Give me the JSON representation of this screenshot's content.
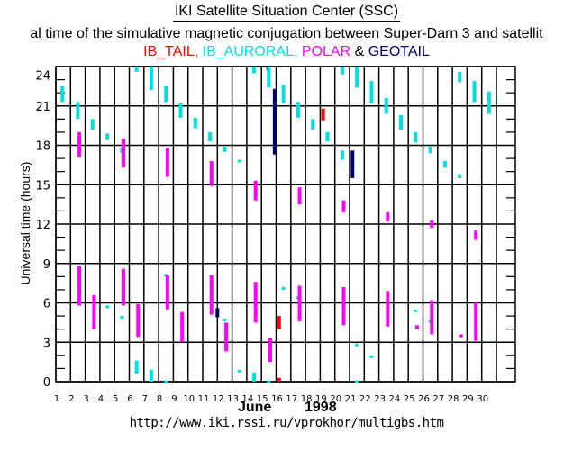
{
  "header": {
    "title": "IKI Satellite Situation Center (SSC)",
    "subtitle": "al time of the simulative magnetic conjugation between Super-Darn 3 and satellit",
    "legend": [
      {
        "label": "IB_TAIL,",
        "color": "#ff0000"
      },
      {
        "label": " IB_AURORAL,",
        "color": "#00e0e0"
      },
      {
        "label": " POLAR",
        "color": "#ff00ff"
      },
      {
        "label": " & ",
        "color": "#000000"
      },
      {
        "label": "GEOTAIL",
        "color": "#000070"
      }
    ]
  },
  "footer": {
    "month": "June",
    "year": "1998",
    "url": "http://www.iki.rssi.ru/vprokhor/multigbs.htm"
  },
  "chart_data": {
    "type": "bar",
    "title": "IKI Satellite Situation Center (SSC)",
    "xlabel": "June 1998",
    "ylabel": "Universal time (hours)",
    "xlim": [
      1,
      31
    ],
    "ylim": [
      0,
      24
    ],
    "grid": true,
    "x_ticks": [
      "1",
      "2",
      "3",
      "4",
      "5",
      "6",
      "7",
      "8",
      "9",
      "10",
      "11",
      "12",
      "13",
      "14",
      "15",
      "16",
      "17",
      "18",
      "19",
      "20",
      "21",
      "22",
      "23",
      "24",
      "25",
      "26",
      "27",
      "28",
      "29",
      "30"
    ],
    "y_ticks": [
      "0",
      "3",
      "6",
      "9",
      "12",
      "15",
      "18",
      "21",
      "24"
    ],
    "legend_position": "top-center",
    "series": [
      {
        "name": "IB_TAIL",
        "color": "#ff0000",
        "intervals": [
          [
            15.45,
            23.7,
            24.0
          ],
          [
            16.2,
            4.0,
            5.0
          ],
          [
            16.2,
            0.0,
            0.3
          ],
          [
            19.2,
            19.9,
            20.8
          ]
        ]
      },
      {
        "name": "IB_AURORAL",
        "color": "#00e0e0",
        "intervals": [
          [
            1.45,
            21.3,
            22.5
          ],
          [
            2.5,
            20.0,
            21.3
          ],
          [
            3.5,
            19.2,
            20.0
          ],
          [
            4.5,
            18.4,
            18.9
          ],
          [
            5.5,
            17.4,
            17.8
          ],
          [
            6.5,
            23.6,
            24.0
          ],
          [
            7.5,
            22.2,
            24.0
          ],
          [
            8.5,
            21.3,
            22.5
          ],
          [
            9.5,
            20.1,
            21.2
          ],
          [
            10.5,
            19.3,
            20.1
          ],
          [
            11.5,
            18.3,
            19.0
          ],
          [
            12.5,
            17.5,
            17.9
          ],
          [
            13.5,
            16.7,
            16.9
          ],
          [
            14.5,
            23.5,
            24.0
          ],
          [
            15.5,
            22.4,
            24.0
          ],
          [
            16.5,
            21.2,
            22.6
          ],
          [
            17.5,
            20.1,
            21.3
          ],
          [
            18.5,
            19.2,
            20.0
          ],
          [
            19.5,
            18.3,
            19.0
          ],
          [
            20.5,
            16.9,
            17.6
          ],
          [
            20.5,
            23.4,
            24.0
          ],
          [
            21.5,
            22.4,
            24.0
          ],
          [
            22.5,
            21.2,
            22.9
          ],
          [
            23.5,
            20.4,
            21.6
          ],
          [
            24.5,
            19.2,
            20.3
          ],
          [
            25.5,
            18.2,
            19.0
          ],
          [
            26.5,
            17.4,
            17.9
          ],
          [
            27.5,
            16.3,
            16.8
          ],
          [
            28.5,
            15.5,
            15.8
          ],
          [
            28.5,
            22.8,
            23.6
          ],
          [
            29.5,
            21.3,
            22.9
          ],
          [
            30.5,
            20.4,
            22.1
          ],
          [
            4.5,
            5.6,
            5.8
          ],
          [
            5.5,
            4.8,
            5.0
          ],
          [
            6.5,
            0.6,
            1.6
          ],
          [
            7.5,
            0.0,
            0.9
          ],
          [
            8.5,
            0.0,
            0.1
          ],
          [
            8.5,
            8.0,
            8.2
          ],
          [
            12.5,
            4.6,
            4.8
          ],
          [
            13.5,
            0.8,
            0.9
          ],
          [
            14.5,
            0.0,
            0.7
          ],
          [
            15.5,
            0.0,
            0.1
          ],
          [
            16.5,
            7.0,
            7.2
          ],
          [
            17.5,
            6.3,
            6.5
          ],
          [
            21.5,
            2.7,
            2.9
          ],
          [
            22.5,
            1.8,
            2.0
          ],
          [
            21.5,
            0.0,
            0.1
          ],
          [
            25.5,
            5.3,
            5.5
          ],
          [
            26.5,
            4.5,
            4.7
          ]
        ]
      },
      {
        "name": "POLAR",
        "color": "#ff00ff",
        "intervals": [
          [
            2.6,
            17.1,
            19.0
          ],
          [
            5.6,
            16.3,
            18.5
          ],
          [
            8.6,
            15.6,
            17.8
          ],
          [
            11.6,
            14.9,
            16.8
          ],
          [
            14.6,
            13.8,
            15.3
          ],
          [
            17.6,
            13.5,
            14.8
          ],
          [
            20.6,
            12.9,
            13.8
          ],
          [
            23.6,
            12.2,
            12.9
          ],
          [
            26.6,
            11.7,
            12.3
          ],
          [
            29.6,
            10.8,
            11.5
          ],
          [
            2.6,
            5.8,
            8.8
          ],
          [
            3.6,
            4.0,
            6.6
          ],
          [
            5.6,
            5.8,
            8.6
          ],
          [
            6.6,
            3.4,
            5.9
          ],
          [
            8.6,
            5.5,
            8.1
          ],
          [
            9.6,
            3.0,
            5.3
          ],
          [
            11.6,
            5.1,
            8.1
          ],
          [
            12.6,
            2.3,
            4.5
          ],
          [
            14.6,
            4.5,
            7.6
          ],
          [
            15.6,
            1.5,
            3.3
          ],
          [
            17.6,
            4.6,
            7.3
          ],
          [
            20.6,
            4.3,
            7.2
          ],
          [
            23.6,
            4.2,
            6.9
          ],
          [
            25.6,
            4.0,
            4.3
          ],
          [
            26.6,
            3.6,
            6.2
          ],
          [
            28.6,
            3.4,
            3.6
          ],
          [
            29.6,
            3.1,
            6.0
          ]
        ]
      },
      {
        "name": "GEOTAIL",
        "color": "#000070",
        "intervals": [
          [
            12.0,
            4.9,
            5.6
          ],
          [
            15.9,
            17.3,
            22.3
          ],
          [
            21.2,
            15.5,
            17.6
          ]
        ]
      }
    ]
  }
}
